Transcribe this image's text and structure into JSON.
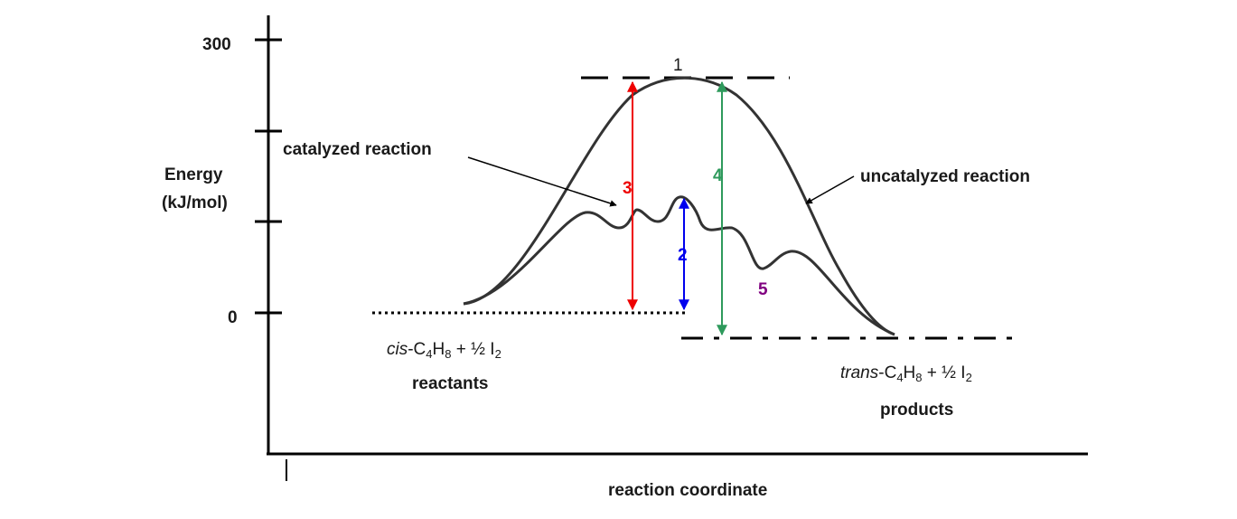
{
  "axes": {
    "y_label_line1": "Energy",
    "y_label_line2": "(kJ/mol)",
    "x_label": "reaction coordinate",
    "y_tick_300": "300",
    "y_tick_0": "0"
  },
  "curves": {
    "catalyzed_label": "catalyzed reaction",
    "uncatalyzed_label": "uncatalyzed reaction"
  },
  "markers": {
    "m1": "1",
    "m2": "2",
    "m3": "3",
    "m4": "4",
    "m5": "5"
  },
  "reactants": {
    "formula": {
      "italic": "cis",
      "pre": "-C",
      "sub1": "4",
      "mid": "H",
      "sub2": "8",
      "post": " + ½ I",
      "sub3": "2"
    },
    "label": "reactants"
  },
  "products": {
    "formula": {
      "italic": "trans",
      "pre": "-C",
      "sub1": "4",
      "mid": "H",
      "sub2": "8",
      "post": " + ½ I",
      "sub3": "2"
    },
    "label": "products"
  },
  "colors": {
    "marker_1": "#000000",
    "marker_2": "#0000ee",
    "marker_3": "#ee0000",
    "marker_4": "#2e9a5c",
    "marker_5": "#800080",
    "reactants_label": "#ee0000",
    "products_label": "#ee0000"
  }
}
